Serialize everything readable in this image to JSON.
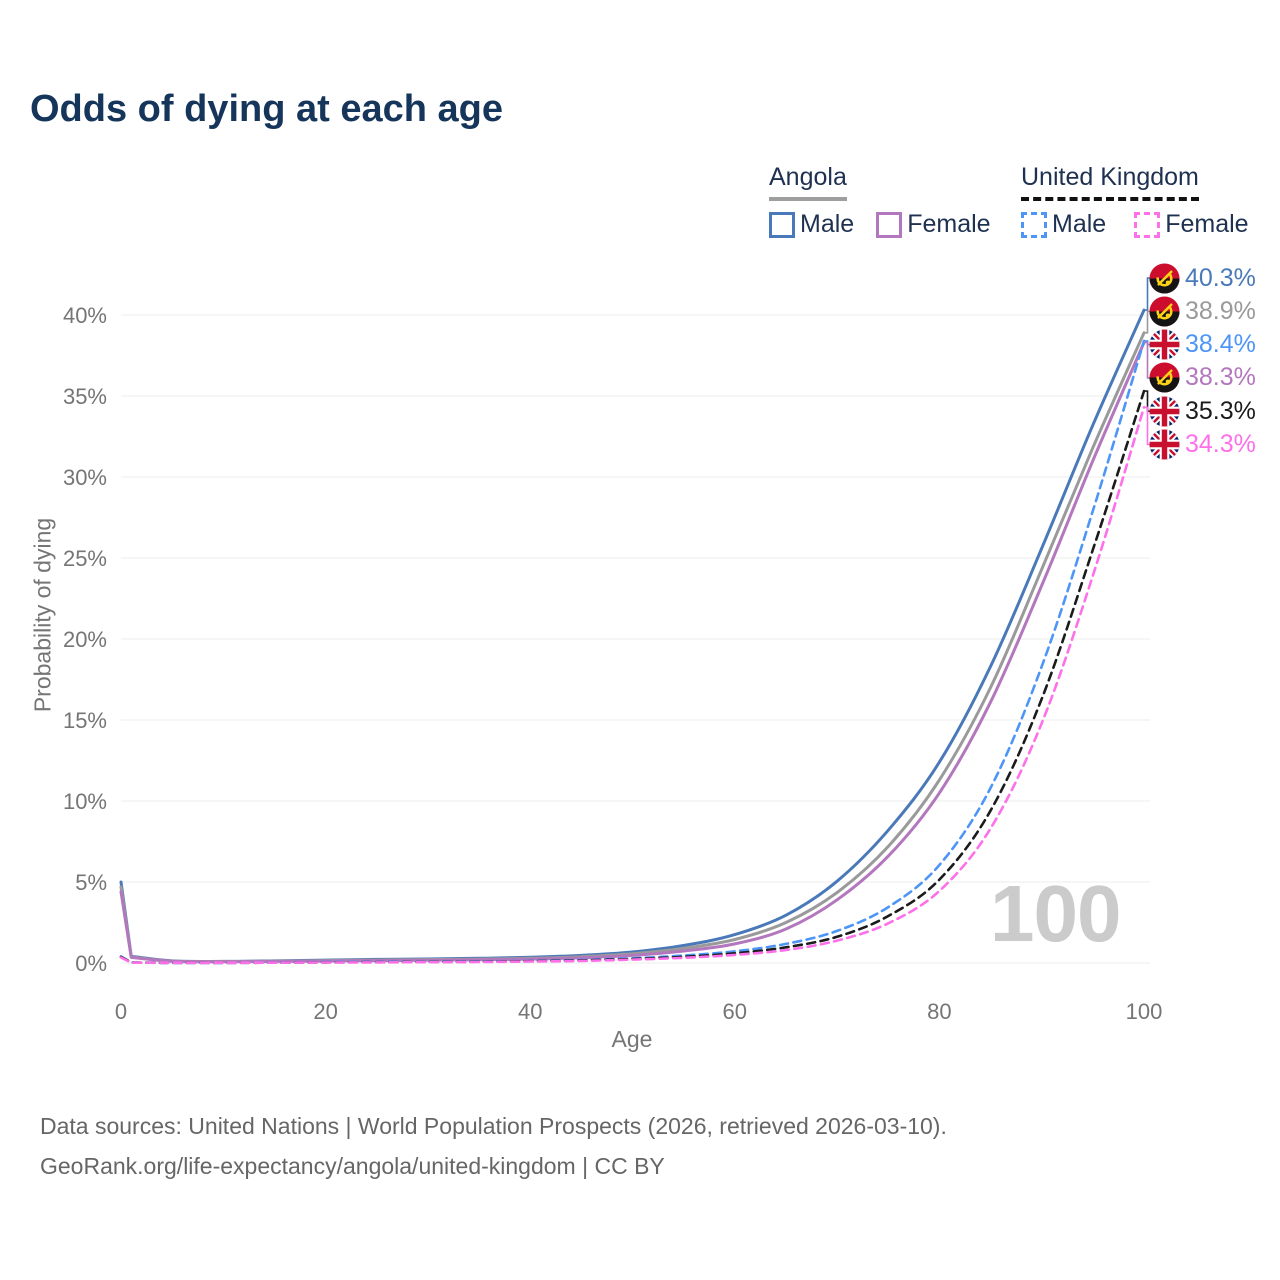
{
  "title": "Odds of dying at each age",
  "legend": {
    "groups": [
      {
        "label": "Angola",
        "underline_style": "solid",
        "underline_color": "#9e9e9e",
        "items": [
          {
            "label": "Male",
            "color": "#4a79b9",
            "dash": false
          },
          {
            "label": "Female",
            "color": "#b377bd",
            "dash": false
          }
        ]
      },
      {
        "label": "United Kingdom",
        "underline_style": "dashed",
        "underline_color": "#111111",
        "items": [
          {
            "label": "Male",
            "color": "#4d95f7",
            "dash": true
          },
          {
            "label": "Female",
            "color": "#fd70e9",
            "dash": true
          }
        ]
      }
    ]
  },
  "chart_data": {
    "type": "line",
    "title": "Odds of dying at each age",
    "xlabel": "Age",
    "ylabel": "Probability of dying",
    "xlim": [
      0,
      100
    ],
    "ylim": [
      0,
      43
    ],
    "x_ticks": [
      0,
      20,
      40,
      60,
      80,
      100
    ],
    "y_ticks": [
      0,
      5,
      10,
      15,
      20,
      25,
      30,
      35,
      40
    ],
    "y_tick_labels": [
      "0%",
      "5%",
      "10%",
      "15%",
      "20%",
      "25%",
      "30%",
      "35%",
      "40%"
    ],
    "grid": true,
    "legend_position": "top-right",
    "watermark": "100",
    "ages": [
      0,
      1,
      5,
      10,
      15,
      20,
      25,
      30,
      35,
      40,
      45,
      50,
      55,
      60,
      65,
      70,
      75,
      80,
      85,
      90,
      95,
      100
    ],
    "series": [
      {
        "name": "Angola Male",
        "country": "Angola",
        "sex": "Male",
        "flag": "angola",
        "color": "#4a79b9",
        "dash": "solid",
        "end_label": "40.3%",
        "values": [
          5.0,
          0.42,
          0.13,
          0.1,
          0.13,
          0.18,
          0.22,
          0.25,
          0.29,
          0.35,
          0.47,
          0.68,
          1.08,
          1.75,
          2.95,
          5.05,
          8.2,
          12.4,
          18.3,
          25.6,
          33.2,
          40.3
        ]
      },
      {
        "name": "Angola Both sexes",
        "country": "Angola",
        "sex": "All",
        "flag": "angola",
        "color": "#9a9a9a",
        "dash": "solid",
        "end_label": "38.9%",
        "values": [
          4.7,
          0.38,
          0.12,
          0.09,
          0.11,
          0.15,
          0.18,
          0.21,
          0.24,
          0.29,
          0.39,
          0.57,
          0.9,
          1.45,
          2.5,
          4.35,
          7.2,
          11.3,
          17.0,
          24.3,
          31.8,
          38.9
        ]
      },
      {
        "name": "Angola Female",
        "country": "Angola",
        "sex": "Female",
        "flag": "angola",
        "color": "#b377bd",
        "dash": "solid",
        "end_label": "38.3%",
        "values": [
          4.4,
          0.35,
          0.11,
          0.08,
          0.1,
          0.12,
          0.15,
          0.17,
          0.2,
          0.24,
          0.32,
          0.47,
          0.74,
          1.18,
          2.1,
          3.9,
          6.6,
          10.5,
          16.1,
          23.3,
          31.0,
          38.3
        ]
      },
      {
        "name": "United Kingdom Male",
        "country": "United Kingdom",
        "sex": "Male",
        "flag": "uk",
        "color": "#4d95f7",
        "dash": "dashed",
        "end_label": "38.4%",
        "values": [
          0.4,
          0.03,
          0.01,
          0.01,
          0.03,
          0.06,
          0.07,
          0.08,
          0.1,
          0.13,
          0.19,
          0.29,
          0.46,
          0.72,
          1.18,
          1.98,
          3.45,
          6.05,
          10.8,
          18.3,
          27.9,
          38.4
        ]
      },
      {
        "name": "United Kingdom Both sexes",
        "country": "United Kingdom",
        "sex": "All",
        "flag": "uk",
        "color": "#1b1b1b",
        "dash": "dashed",
        "end_label": "35.3%",
        "values": [
          0.37,
          0.03,
          0.01,
          0.01,
          0.02,
          0.04,
          0.05,
          0.06,
          0.08,
          0.11,
          0.16,
          0.25,
          0.38,
          0.6,
          0.97,
          1.62,
          2.9,
          5.15,
          9.4,
          16.3,
          25.5,
          35.3
        ]
      },
      {
        "name": "United Kingdom Female",
        "country": "United Kingdom",
        "sex": "Female",
        "flag": "uk",
        "color": "#fd70e9",
        "dash": "dashed",
        "end_label": "34.3%",
        "values": [
          0.34,
          0.02,
          0.01,
          0.01,
          0.02,
          0.03,
          0.04,
          0.05,
          0.06,
          0.09,
          0.13,
          0.21,
          0.32,
          0.5,
          0.8,
          1.38,
          2.45,
          4.45,
          8.3,
          14.8,
          23.9,
          34.3
        ]
      }
    ]
  },
  "footer": {
    "line1": "Data sources: United Nations | World Population Prospects (2026, retrieved 2026-03-10).",
    "line2": "GeoRank.org/life-expectancy/angola/united-kingdom | CC BY"
  }
}
